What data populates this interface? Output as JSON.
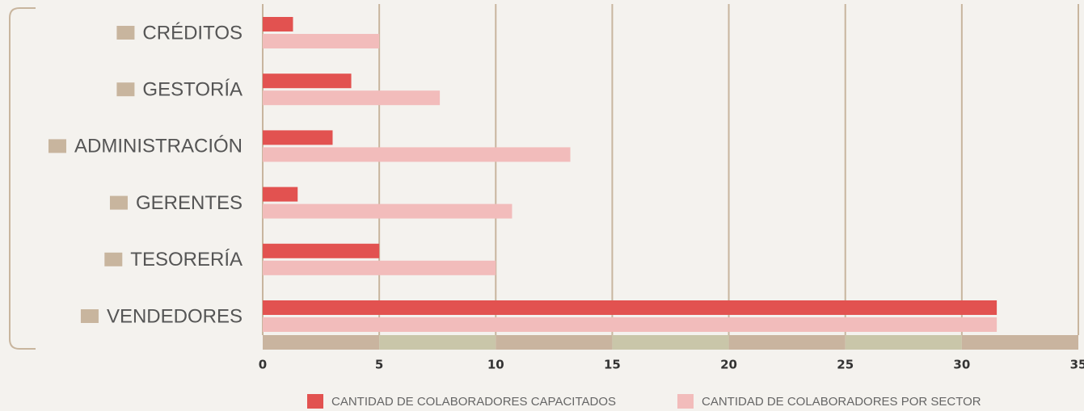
{
  "chart_data": {
    "type": "bar",
    "orientation": "horizontal",
    "categories": [
      "CRÉDITOS",
      "GESTORÍA",
      "ADMINISTRACIÓN",
      "GERENTES",
      "TESORERÍA",
      "VENDEDORES"
    ],
    "series": [
      {
        "name": "CANTIDAD DE COLABORADORES CAPACITADOS",
        "color": "#e25250",
        "values": [
          1.3,
          3.8,
          3.0,
          1.5,
          5.0,
          31.5
        ]
      },
      {
        "name": "CANTIDAD DE COLABORADORES POR SECTOR",
        "color": "#f2bcbb",
        "values": [
          5.0,
          7.6,
          13.2,
          10.7,
          10.0,
          31.5
        ]
      }
    ],
    "xlim": [
      0,
      35
    ],
    "xticks": [
      0,
      5,
      10,
      15,
      20,
      25,
      30,
      35
    ],
    "grid": true,
    "legend": "bottom"
  }
}
